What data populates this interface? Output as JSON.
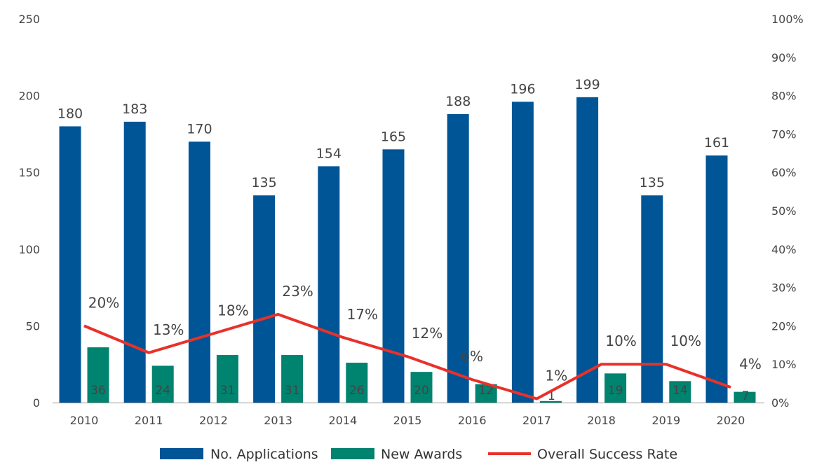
{
  "chart_data": {
    "type": "bar",
    "categories": [
      "2010",
      "2011",
      "2012",
      "2013",
      "2014",
      "2015",
      "2016",
      "2017",
      "2018",
      "2019",
      "2020"
    ],
    "series": [
      {
        "name": "No. Applications",
        "type": "bar",
        "axis": "left",
        "color": "#005596",
        "values": [
          180,
          183,
          170,
          135,
          154,
          165,
          188,
          196,
          199,
          135,
          161
        ]
      },
      {
        "name": "New Awards",
        "type": "bar",
        "axis": "left",
        "color": "#00836f",
        "values": [
          36,
          24,
          31,
          31,
          26,
          20,
          12,
          1,
          19,
          14,
          7
        ]
      },
      {
        "name": "Overall Success Rate",
        "type": "line",
        "axis": "right",
        "color": "#e8312a",
        "values": [
          20,
          13,
          18,
          23,
          17,
          12,
          6,
          1,
          10,
          10,
          4
        ],
        "labels": [
          "20%",
          "13%",
          "18%",
          "23%",
          "17%",
          "12%",
          "6%",
          "1%",
          "10%",
          "10%",
          "4%"
        ]
      }
    ],
    "ylim_left": [
      0,
      250
    ],
    "yticks_left": [
      "0",
      "50",
      "100",
      "150",
      "200",
      "250"
    ],
    "ylim_right": [
      0,
      100
    ],
    "yticks_right": [
      "0%",
      "10%",
      "20%",
      "30%",
      "40%",
      "50%",
      "60%",
      "70%",
      "80%",
      "90%",
      "100%"
    ],
    "grid": false,
    "legend_position": "bottom"
  }
}
